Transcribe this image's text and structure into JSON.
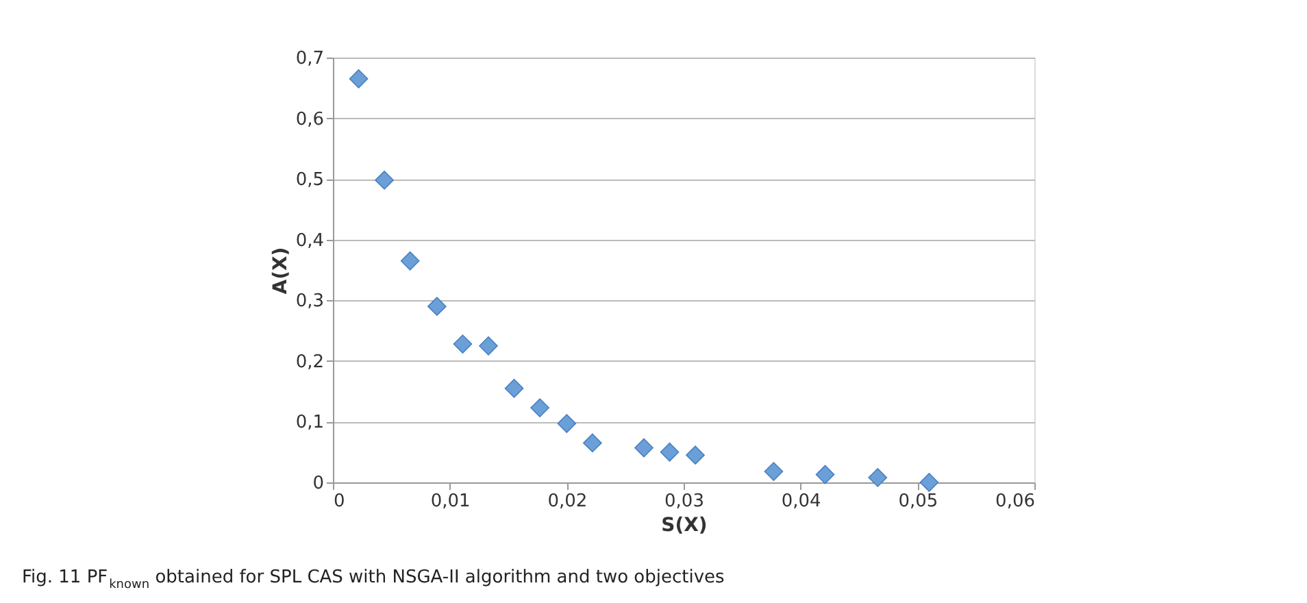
{
  "chart_data": {
    "type": "scatter",
    "xlabel": "S(X)",
    "ylabel": "A(X)",
    "x": [
      0.0022,
      0.0044,
      0.0066,
      0.0089,
      0.0111,
      0.0133,
      0.0155,
      0.0177,
      0.02,
      0.0222,
      0.0266,
      0.0288,
      0.031,
      0.0377,
      0.0421,
      0.0466,
      0.051
    ],
    "series": [
      {
        "color": "#6a9fd8",
        "values": [
          0.665,
          0.498,
          0.365,
          0.29,
          0.228,
          0.225,
          0.155,
          0.123,
          0.097,
          0.065,
          0.057,
          0.05,
          0.045,
          0.018,
          0.013,
          0.008,
          0.0
        ]
      }
    ],
    "xlim": [
      0,
      0.06
    ],
    "ylim": [
      0,
      0.7
    ],
    "xticks": [
      0,
      {
        "value": 0.01,
        "label": "0,01"
      },
      {
        "value": 0.02,
        "label": "0,02"
      },
      {
        "value": 0.03,
        "label": "0,03"
      },
      {
        "value": 0.04,
        "label": "0,04"
      },
      {
        "value": 0.05,
        "label": "0,05"
      },
      {
        "value": 0.06,
        "label": "0,06"
      }
    ],
    "yticks": [
      0,
      {
        "value": 0.1,
        "label": "0,1"
      },
      {
        "value": 0.2,
        "label": "0,2"
      },
      {
        "value": 0.3,
        "label": "0,3"
      },
      {
        "value": 0.4,
        "label": "0,4"
      },
      {
        "value": 0.5,
        "label": "0,5"
      },
      {
        "value": 0.6,
        "label": "0,6"
      },
      {
        "value": 0.7,
        "label": "0,7"
      }
    ],
    "grid": "y",
    "marker": "diamond",
    "annotations": [
      "Fig. 11 PF$_{known}$ obtained for SPL CAS with NSGA-II algorithm and two objectives"
    ]
  }
}
